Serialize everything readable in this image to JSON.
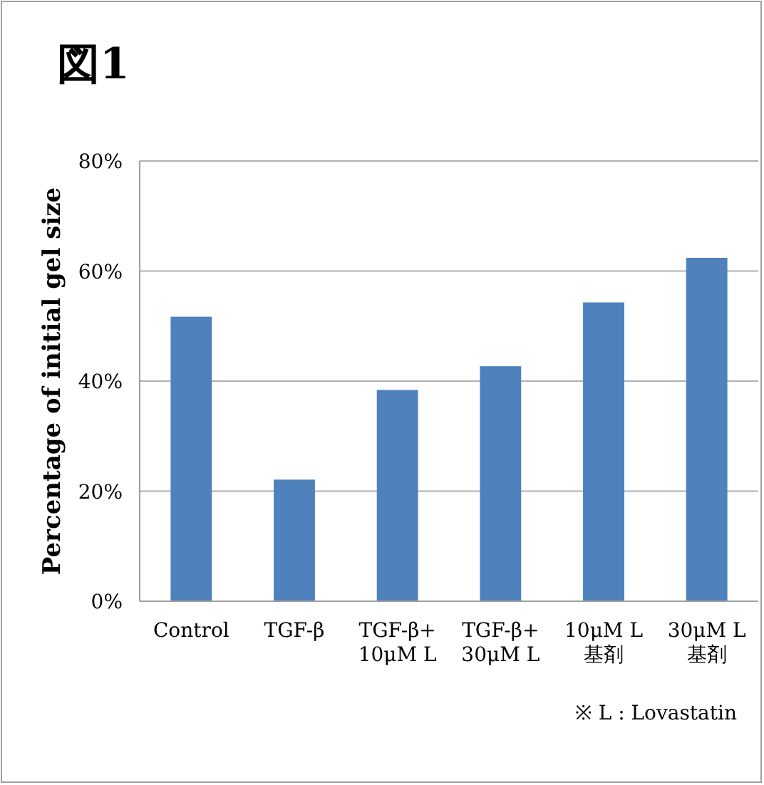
{
  "chart_data": {
    "type": "bar",
    "title": "図1",
    "ylabel": "Percentage of initial gel size",
    "categories": [
      "Control",
      "TGF-β",
      "TGF-β+\n10μM L",
      "TGF-β+\n30μM L",
      "10μM L\n基剤",
      "30μM L\n基剤"
    ],
    "values": [
      51.7,
      22.1,
      38.4,
      42.7,
      54.3,
      62.4
    ],
    "color": "#4f81bd",
    "ylim": [
      0,
      80
    ],
    "yticks": [
      {
        "value": 0,
        "label": "0%"
      },
      {
        "value": 20,
        "label": "20%"
      },
      {
        "value": 40,
        "label": "40%"
      },
      {
        "value": 60,
        "label": "60%"
      },
      {
        "value": 80,
        "label": "80%"
      }
    ],
    "grid": "y",
    "annotations": [
      "※ L : Lovastatin"
    ]
  }
}
